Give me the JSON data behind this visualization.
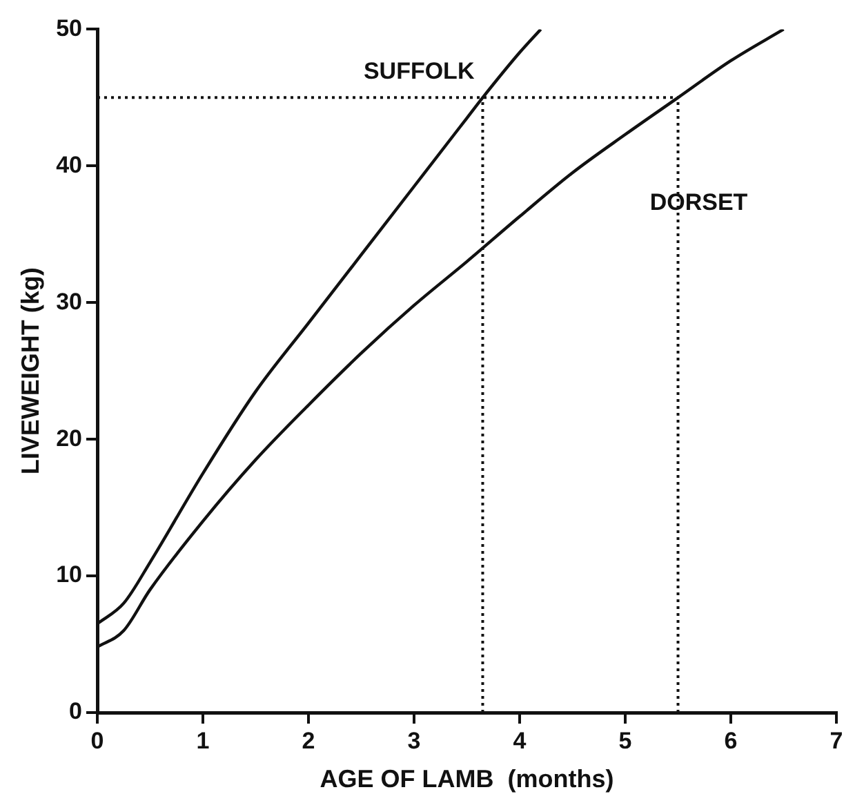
{
  "chart_data": {
    "type": "line",
    "xlabel": "AGE OF LAMB  (months)",
    "ylabel": "LIVEWEIGHT (kg)",
    "xlim": [
      0,
      7
    ],
    "xticks": [
      0,
      1,
      2,
      3,
      4,
      5,
      6,
      7
    ],
    "ylim": [
      0,
      50
    ],
    "yticks": [
      0,
      10,
      20,
      30,
      40,
      50
    ],
    "grid": false,
    "legend": false,
    "marker": "none",
    "line_style": "solid",
    "series": [
      {
        "name": "SUFFOLK",
        "color": "#111111",
        "x": [
          0,
          0.25,
          0.5,
          1,
          1.5,
          2,
          2.5,
          3,
          3.5,
          3.65,
          4,
          4.2
        ],
        "values": [
          6.5,
          8,
          11,
          17.5,
          23.5,
          28.5,
          33.5,
          38.5,
          43.5,
          45,
          48.3,
          50
        ]
      },
      {
        "name": "DORSET",
        "color": "#111111",
        "x": [
          0,
          0.25,
          0.5,
          1,
          1.5,
          2,
          2.5,
          3,
          3.5,
          4,
          4.5,
          5,
          5.5,
          6,
          6.5
        ],
        "values": [
          4.8,
          6,
          9,
          14,
          18.5,
          22.5,
          26.3,
          29.8,
          33,
          36.3,
          39.5,
          42.3,
          45,
          47.7,
          50
        ]
      }
    ],
    "ref_lines": [
      {
        "axis": "y",
        "value": 45,
        "line_style": "dotted",
        "color": "#111111"
      },
      {
        "axis": "x",
        "value": 3.65,
        "line_style": "dotted",
        "color": "#111111"
      },
      {
        "axis": "x",
        "value": 5.5,
        "line_style": "dotted",
        "color": "#111111"
      }
    ]
  }
}
